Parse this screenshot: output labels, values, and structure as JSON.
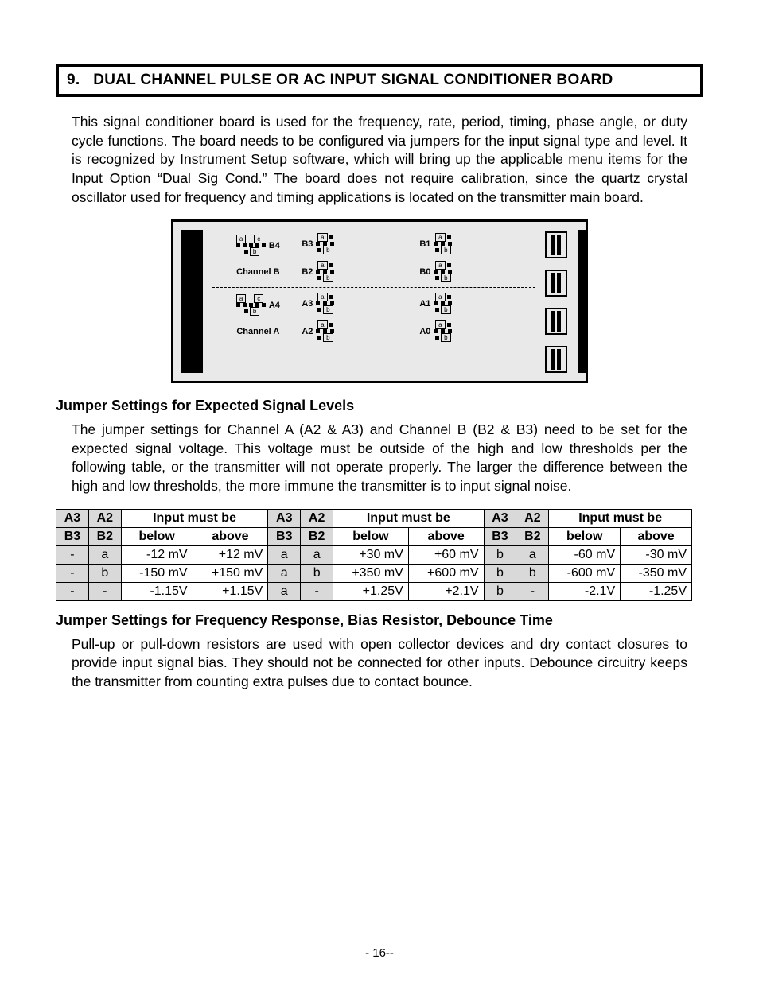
{
  "page_number": "- 16--",
  "section": {
    "number": "9.",
    "title": "DUAL CHANNEL PULSE OR AC INPUT SIGNAL CONDITIONER BOARD"
  },
  "intro_paragraph": "This signal conditioner board is used for the frequency, rate, period, timing, phase angle, or duty cycle functions. The board needs to be configured via jumpers for the input signal type and level. It is recognized by Instrument Setup software, which will bring up the applicable menu items for the Input Option “Dual Sig Cond.” The board does not require calibration, since the quartz crystal oscillator used for frequency and timing applications is located on the transmitter main board.",
  "diagram": {
    "background": "#e9e9e9",
    "border_color": "#000000",
    "channels": [
      {
        "name": "Channel B",
        "main_jumper": "B4",
        "mid_jumpers": [
          "B3",
          "B2"
        ],
        "right_jumpers": [
          "B1",
          "B0"
        ],
        "pos_labels": {
          "a": "a",
          "b": "b",
          "c": "c"
        }
      },
      {
        "name": "Channel A",
        "main_jumper": "A4",
        "mid_jumpers": [
          "A3",
          "A2"
        ],
        "right_jumpers": [
          "A1",
          "A0"
        ],
        "pos_labels": {
          "a": "a",
          "b": "b",
          "c": "c"
        }
      }
    ]
  },
  "signal_levels": {
    "heading": "Jumper Settings for Expected Signal Levels",
    "paragraph": "The jumper settings for Channel A (A2 & A3) and Channel B  (B2 & B3) need to be set for the expected signal voltage. This voltage must be outside of the high and low thresholds per the following table, or the transmitter will not operate properly. The larger the difference between the high and low thresholds, the more immune the transmitter is to input signal noise.",
    "header": {
      "col_a3": "A3",
      "col_a2": "A2",
      "input_must_be": "Input must be",
      "col_b3": "B3",
      "col_b2": "B2",
      "below": "below",
      "above": "above"
    },
    "blocks": [
      {
        "rows": [
          {
            "j1": "-",
            "j2": "a",
            "below": "-12 mV",
            "above": "+12 mV"
          },
          {
            "j1": "-",
            "j2": "b",
            "below": "-150 mV",
            "above": "+150 mV"
          },
          {
            "j1": "-",
            "j2": "-",
            "below": "-1.15V",
            "above": "+1.15V"
          }
        ]
      },
      {
        "rows": [
          {
            "j1": "a",
            "j2": "a",
            "below": "+30 mV",
            "above": "+60 mV"
          },
          {
            "j1": "a",
            "j2": "b",
            "below": "+350 mV",
            "above": "+600 mV"
          },
          {
            "j1": "a",
            "j2": "-",
            "below": "+1.25V",
            "above": "+2.1V"
          }
        ]
      },
      {
        "rows": [
          {
            "j1": "b",
            "j2": "a",
            "below": "-60 mV",
            "above": "-30 mV"
          },
          {
            "j1": "b",
            "j2": "b",
            "below": "-600 mV",
            "above": "-350 mV"
          },
          {
            "j1": "b",
            "j2": "-",
            "below": "-2.1V",
            "above": "-1.25V"
          }
        ]
      }
    ],
    "header_bg": "#d9d9d9"
  },
  "freq_response": {
    "heading": "Jumper Settings for Frequency Response, Bias Resistor, Debounce Time",
    "paragraph": "Pull-up or pull-down resistors are used with open collector devices and dry contact closures to provide input signal bias. They should not be connected for other inputs. Debounce circuitry keeps the transmitter from counting extra pulses due to contact bounce."
  },
  "style": {
    "page_bg": "#ffffff",
    "text_color": "#000000",
    "banner_border": "#000000",
    "table_border": "#000000",
    "body_font": "Arial Narrow",
    "heading_font": "Arial Narrow"
  }
}
